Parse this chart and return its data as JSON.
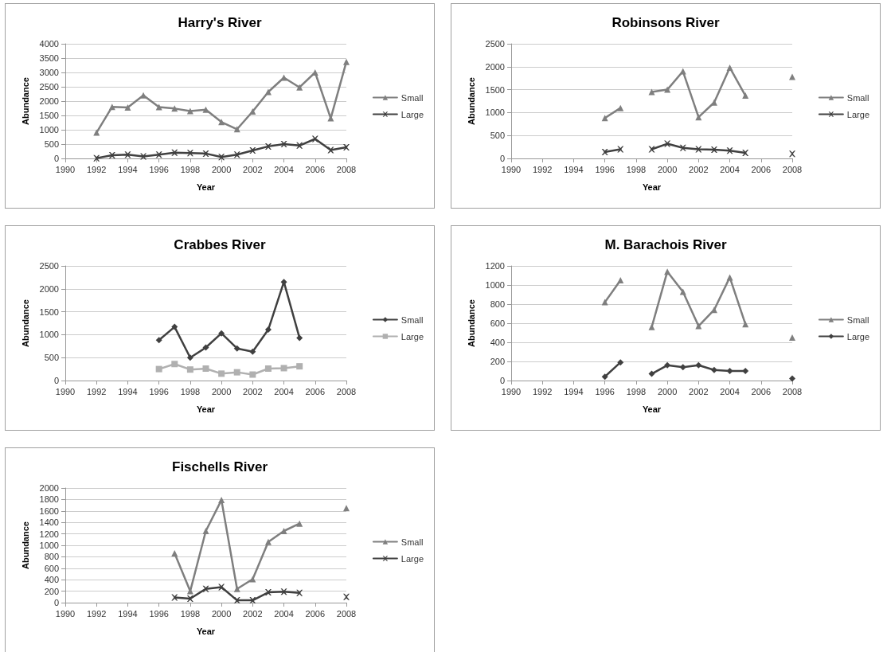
{
  "chart_data": [
    {
      "type": "line",
      "title": "Harry's River",
      "xlabel": "Year",
      "ylabel": "Abundance",
      "xlim": [
        1990,
        2008
      ],
      "xticks": [
        1990,
        1992,
        1994,
        1996,
        1998,
        2000,
        2002,
        2004,
        2006,
        2008
      ],
      "ylim": [
        0,
        4000
      ],
      "yticks": [
        0,
        500,
        1000,
        1500,
        2000,
        2500,
        3000,
        3500,
        4000
      ],
      "grid": "y",
      "legend": "right",
      "line_style": "solid",
      "series": [
        {
          "name": "Small",
          "color": "#7f7f7f",
          "marker": "triangle",
          "x": [
            1992,
            1993,
            1994,
            1995,
            1996,
            1997,
            1998,
            1999,
            2000,
            2001,
            2002,
            2003,
            2004,
            2005,
            2006,
            2007,
            2008
          ],
          "values": [
            900,
            1800,
            1780,
            2200,
            1790,
            1740,
            1650,
            1700,
            1270,
            1020,
            1640,
            2320,
            2820,
            2480,
            3000,
            1400,
            3370
          ]
        },
        {
          "name": "Large",
          "color": "#404040",
          "marker": "cross",
          "x": [
            1992,
            1993,
            1994,
            1995,
            1996,
            1997,
            1998,
            1999,
            2000,
            2001,
            2002,
            2003,
            2004,
            2005,
            2006,
            2007,
            2008
          ],
          "values": [
            10,
            110,
            130,
            70,
            130,
            200,
            190,
            170,
            50,
            130,
            280,
            420,
            500,
            450,
            680,
            290,
            390
          ]
        }
      ]
    },
    {
      "type": "line",
      "title": "Robinsons River",
      "xlabel": "Year",
      "ylabel": "Abundance",
      "xlim": [
        1990,
        2008
      ],
      "xticks": [
        1990,
        1992,
        1994,
        1996,
        1998,
        2000,
        2002,
        2004,
        2006,
        2008
      ],
      "ylim": [
        0,
        2500
      ],
      "yticks": [
        0,
        500,
        1000,
        1500,
        2000,
        2500
      ],
      "grid": "y",
      "legend": "right",
      "line_style": "solid",
      "series": [
        {
          "name": "Small",
          "color": "#7f7f7f",
          "marker": "triangle",
          "x": [
            1996,
            1997,
            1998,
            1999,
            2000,
            2001,
            2002,
            2003,
            2004,
            2005,
            2006,
            2007,
            2008
          ],
          "values": [
            880,
            1100,
            null,
            1450,
            1500,
            1900,
            900,
            1220,
            1980,
            1370,
            null,
            null,
            1780
          ]
        },
        {
          "name": "Large",
          "color": "#404040",
          "marker": "cross",
          "x": [
            1996,
            1997,
            1998,
            1999,
            2000,
            2001,
            2002,
            2003,
            2004,
            2005,
            2006,
            2007,
            2008
          ],
          "values": [
            140,
            200,
            null,
            200,
            320,
            230,
            200,
            190,
            170,
            120,
            null,
            null,
            100
          ]
        }
      ]
    },
    {
      "type": "line",
      "title": "Crabbes River",
      "xlabel": "Year",
      "ylabel": "Abundance",
      "xlim": [
        1990,
        2008
      ],
      "xticks": [
        1990,
        1992,
        1994,
        1996,
        1998,
        2000,
        2002,
        2004,
        2006,
        2008
      ],
      "ylim": [
        0,
        2500
      ],
      "yticks": [
        0,
        500,
        1000,
        1500,
        2000,
        2500
      ],
      "grid": "y",
      "legend": "right",
      "line_style": "solid",
      "series": [
        {
          "name": "Small",
          "color": "#404040",
          "marker": "diamond",
          "x": [
            1996,
            1997,
            1998,
            1999,
            2000,
            2001,
            2002,
            2003,
            2004,
            2005
          ],
          "values": [
            880,
            1170,
            500,
            720,
            1030,
            700,
            630,
            1110,
            2150,
            930
          ]
        },
        {
          "name": "Large",
          "color": "#b0b0b0",
          "marker": "square",
          "x": [
            1996,
            1997,
            1998,
            1999,
            2000,
            2001,
            2002,
            2003,
            2004,
            2005
          ],
          "values": [
            250,
            360,
            240,
            260,
            150,
            180,
            130,
            260,
            270,
            310
          ]
        }
      ]
    },
    {
      "type": "line",
      "title": "M. Barachois River",
      "xlabel": "Year",
      "ylabel": "Abundance",
      "xlim": [
        1990,
        2008
      ],
      "xticks": [
        1990,
        1992,
        1994,
        1996,
        1998,
        2000,
        2002,
        2004,
        2006,
        2008
      ],
      "ylim": [
        0,
        1200
      ],
      "yticks": [
        0,
        200,
        400,
        600,
        800,
        1000,
        1200
      ],
      "grid": "y",
      "legend": "right",
      "line_style": "solid",
      "series": [
        {
          "name": "Small",
          "color": "#7f7f7f",
          "marker": "triangle",
          "x": [
            1996,
            1997,
            1998,
            1999,
            2000,
            2001,
            2002,
            2003,
            2004,
            2005,
            2006,
            2007,
            2008
          ],
          "values": [
            820,
            1050,
            null,
            560,
            1140,
            930,
            570,
            740,
            1080,
            590,
            null,
            null,
            450
          ]
        },
        {
          "name": "Large",
          "color": "#404040",
          "marker": "diamond",
          "x": [
            1996,
            1997,
            1998,
            1999,
            2000,
            2001,
            2002,
            2003,
            2004,
            2005,
            2006,
            2007,
            2008
          ],
          "values": [
            40,
            190,
            null,
            70,
            160,
            140,
            160,
            110,
            100,
            100,
            null,
            null,
            20
          ]
        }
      ]
    },
    {
      "type": "line",
      "title": "Fischells River",
      "xlabel": "Year",
      "ylabel": "Abundance",
      "xlim": [
        1990,
        2008
      ],
      "xticks": [
        1990,
        1992,
        1994,
        1996,
        1998,
        2000,
        2002,
        2004,
        2006,
        2008
      ],
      "ylim": [
        0,
        2000
      ],
      "yticks": [
        0,
        200,
        400,
        600,
        800,
        1000,
        1200,
        1400,
        1600,
        1800,
        2000
      ],
      "grid": "y",
      "legend": "right",
      "line_style": "solid",
      "series": [
        {
          "name": "Small",
          "color": "#7f7f7f",
          "marker": "triangle",
          "x": [
            1997,
            1998,
            1999,
            2000,
            2001,
            2002,
            2003,
            2004,
            2005,
            2006,
            2007,
            2008
          ],
          "values": [
            860,
            200,
            1250,
            1790,
            240,
            410,
            1060,
            1250,
            1380,
            null,
            null,
            1650
          ]
        },
        {
          "name": "Large",
          "color": "#404040",
          "marker": "cross",
          "x": [
            1997,
            1998,
            1999,
            2000,
            2001,
            2002,
            2003,
            2004,
            2005,
            2006,
            2007,
            2008
          ],
          "values": [
            90,
            70,
            240,
            270,
            40,
            40,
            180,
            190,
            170,
            null,
            null,
            100
          ]
        }
      ]
    }
  ]
}
